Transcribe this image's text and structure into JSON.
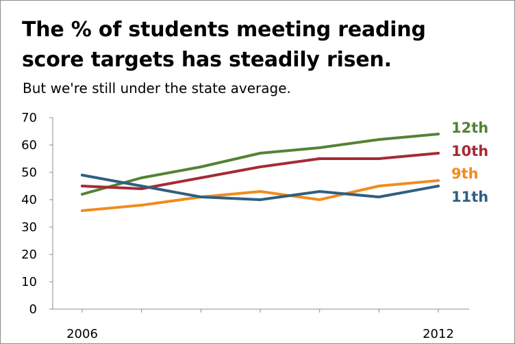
{
  "chart_data": {
    "type": "line",
    "title": [
      "The % of students meeting reading",
      "score targets has steadily risen."
    ],
    "subtitle": "But we're still under the state average.",
    "x": [
      2006,
      2007,
      2008,
      2009,
      2010,
      2011,
      2012
    ],
    "x_tick_labels": [
      "2006",
      "2012"
    ],
    "ylim": [
      0,
      70
    ],
    "y_ticks": [
      0,
      10,
      20,
      30,
      40,
      50,
      60,
      70
    ],
    "grid": false,
    "legend": "none (series labels at line ends)",
    "series": [
      {
        "name": "12th",
        "color": "#548235",
        "values": [
          42,
          48,
          52,
          57,
          59,
          62,
          64
        ]
      },
      {
        "name": "10th",
        "color": "#A52A35",
        "values": [
          45,
          44,
          48,
          52,
          55,
          55,
          57
        ]
      },
      {
        "name": "9th",
        "color": "#F08C1E",
        "values": [
          36,
          38,
          41,
          43,
          40,
          45,
          47
        ]
      },
      {
        "name": "11th",
        "color": "#2E5F80",
        "values": [
          49,
          45,
          41,
          40,
          43,
          41,
          45
        ]
      }
    ]
  }
}
